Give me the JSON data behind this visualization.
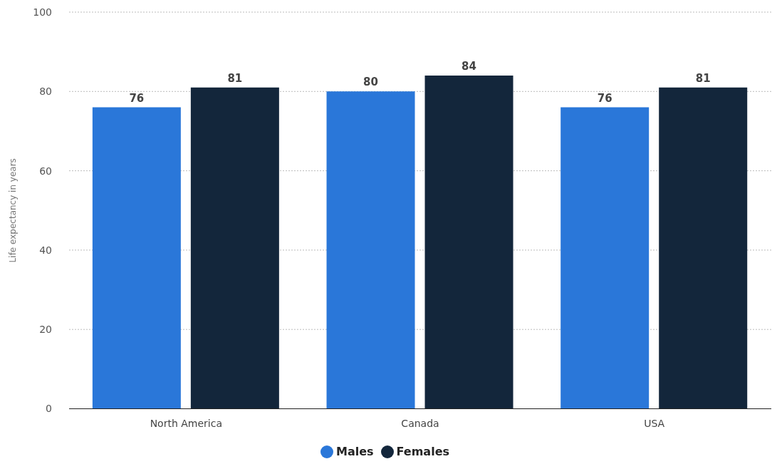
{
  "chart_data": {
    "type": "bar",
    "ylabel": "Life expectancy in years",
    "categories": [
      "North America",
      "Canada",
      "USA"
    ],
    "series": [
      {
        "name": "Males",
        "color": "#2a77d9",
        "values": [
          76,
          80,
          76
        ]
      },
      {
        "name": "Females",
        "color": "#13263b",
        "values": [
          81,
          84,
          81
        ]
      }
    ],
    "ylim": [
      0,
      100
    ],
    "yticks": [
      0,
      20,
      40,
      60,
      80,
      100
    ],
    "grid": "y",
    "legend": "bottom",
    "data_labels": true
  }
}
